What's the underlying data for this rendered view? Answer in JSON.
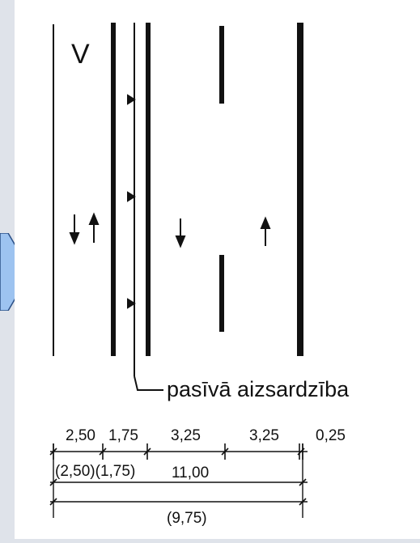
{
  "diagram": {
    "section_label": "V",
    "callout_label": "pasīvā aizsardzība",
    "dimensions_top": [
      "2,50",
      "1,75",
      "3,25",
      "3,25",
      "0,25"
    ],
    "dimensions_middle": [
      "(2,50)(1,75)",
      "11,00"
    ],
    "dimensions_bottom": "(9,75)"
  },
  "colors": {
    "background": "#dfe3ea",
    "page": "#ffffff",
    "ink": "#111111",
    "tab_fill": "#9dc3f0",
    "tab_stroke": "#2a4f86"
  }
}
